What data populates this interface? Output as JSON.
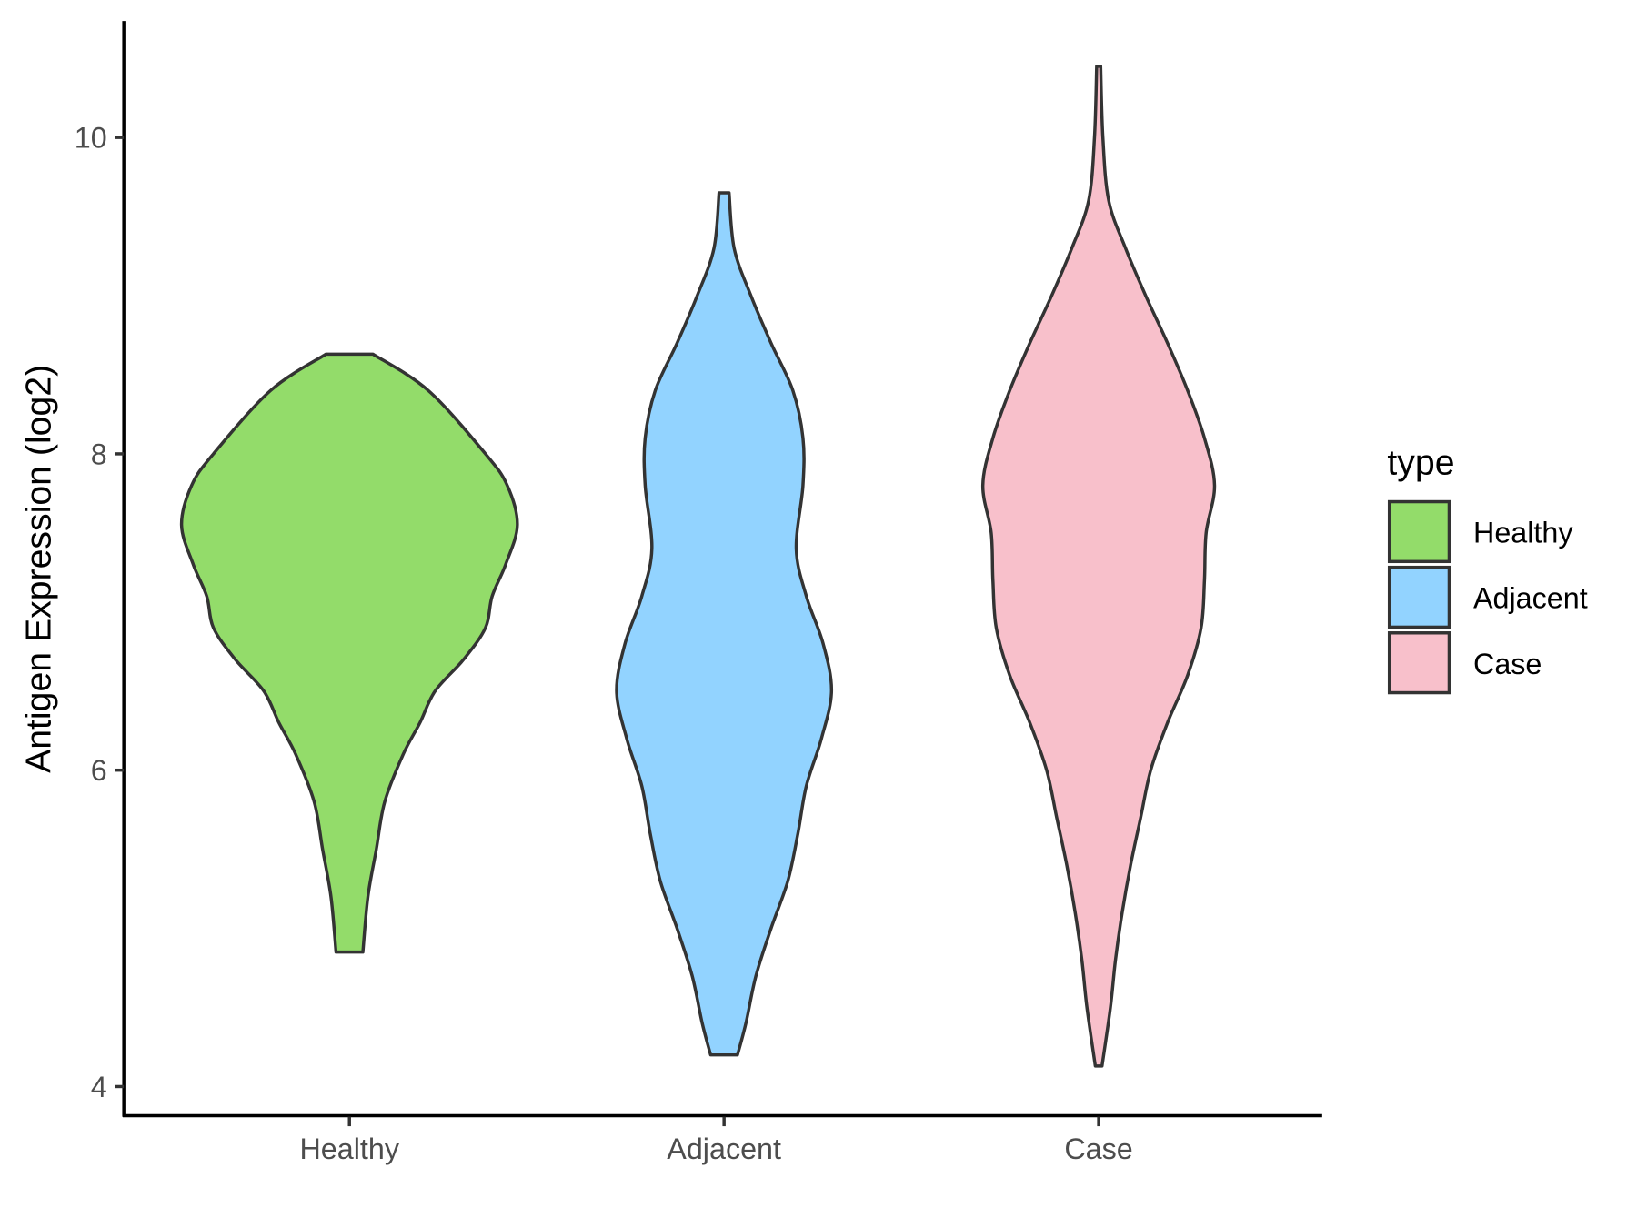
{
  "chart_data": {
    "type": "violin",
    "title": "",
    "xlabel": "",
    "ylabel": "Antigen Expression (log2)",
    "ylim": [
      3.85,
      10.7
    ],
    "yticks": [
      4,
      6,
      8,
      10
    ],
    "categories": [
      "Healthy",
      "Adjacent",
      "Case"
    ],
    "grid": false,
    "legend": {
      "title": "type",
      "position": "right",
      "entries": [
        "Healthy",
        "Adjacent",
        "Case"
      ]
    },
    "colors": {
      "Healthy": "#93dc6a",
      "Adjacent": "#92d3ff",
      "Case": "#f8c0cb",
      "outline": "#333333"
    },
    "series": [
      {
        "name": "Healthy",
        "min": 4.85,
        "max": 8.63,
        "density": [
          [
            4.85,
            0.08
          ],
          [
            5.2,
            0.11
          ],
          [
            5.5,
            0.16
          ],
          [
            5.8,
            0.21
          ],
          [
            6.1,
            0.32
          ],
          [
            6.3,
            0.42
          ],
          [
            6.5,
            0.51
          ],
          [
            6.7,
            0.68
          ],
          [
            6.9,
            0.81
          ],
          [
            7.1,
            0.85
          ],
          [
            7.3,
            0.93
          ],
          [
            7.55,
            1.0
          ],
          [
            7.8,
            0.94
          ],
          [
            8.0,
            0.81
          ],
          [
            8.4,
            0.47
          ],
          [
            8.63,
            0.14
          ]
        ]
      },
      {
        "name": "Adjacent",
        "min": 4.2,
        "max": 9.65,
        "density": [
          [
            4.2,
            0.08
          ],
          [
            4.4,
            0.13
          ],
          [
            4.7,
            0.19
          ],
          [
            5.0,
            0.28
          ],
          [
            5.3,
            0.38
          ],
          [
            5.6,
            0.44
          ],
          [
            5.9,
            0.49
          ],
          [
            6.2,
            0.58
          ],
          [
            6.5,
            0.64
          ],
          [
            6.8,
            0.59
          ],
          [
            7.1,
            0.49
          ],
          [
            7.4,
            0.43
          ],
          [
            7.8,
            0.47
          ],
          [
            8.1,
            0.47
          ],
          [
            8.4,
            0.41
          ],
          [
            8.7,
            0.28
          ],
          [
            9.0,
            0.16
          ],
          [
            9.3,
            0.06
          ],
          [
            9.65,
            0.03
          ]
        ]
      },
      {
        "name": "Case",
        "min": 4.13,
        "max": 10.45,
        "density": [
          [
            4.13,
            0.02
          ],
          [
            4.5,
            0.07
          ],
          [
            4.8,
            0.1
          ],
          [
            5.1,
            0.14
          ],
          [
            5.4,
            0.19
          ],
          [
            5.7,
            0.25
          ],
          [
            6.0,
            0.31
          ],
          [
            6.3,
            0.41
          ],
          [
            6.6,
            0.53
          ],
          [
            6.9,
            0.61
          ],
          [
            7.2,
            0.63
          ],
          [
            7.5,
            0.64
          ],
          [
            7.8,
            0.69
          ],
          [
            8.1,
            0.63
          ],
          [
            8.4,
            0.53
          ],
          [
            8.7,
            0.41
          ],
          [
            9.0,
            0.28
          ],
          [
            9.3,
            0.16
          ],
          [
            9.6,
            0.06
          ],
          [
            10.0,
            0.025
          ],
          [
            10.45,
            0.012
          ]
        ]
      }
    ]
  }
}
